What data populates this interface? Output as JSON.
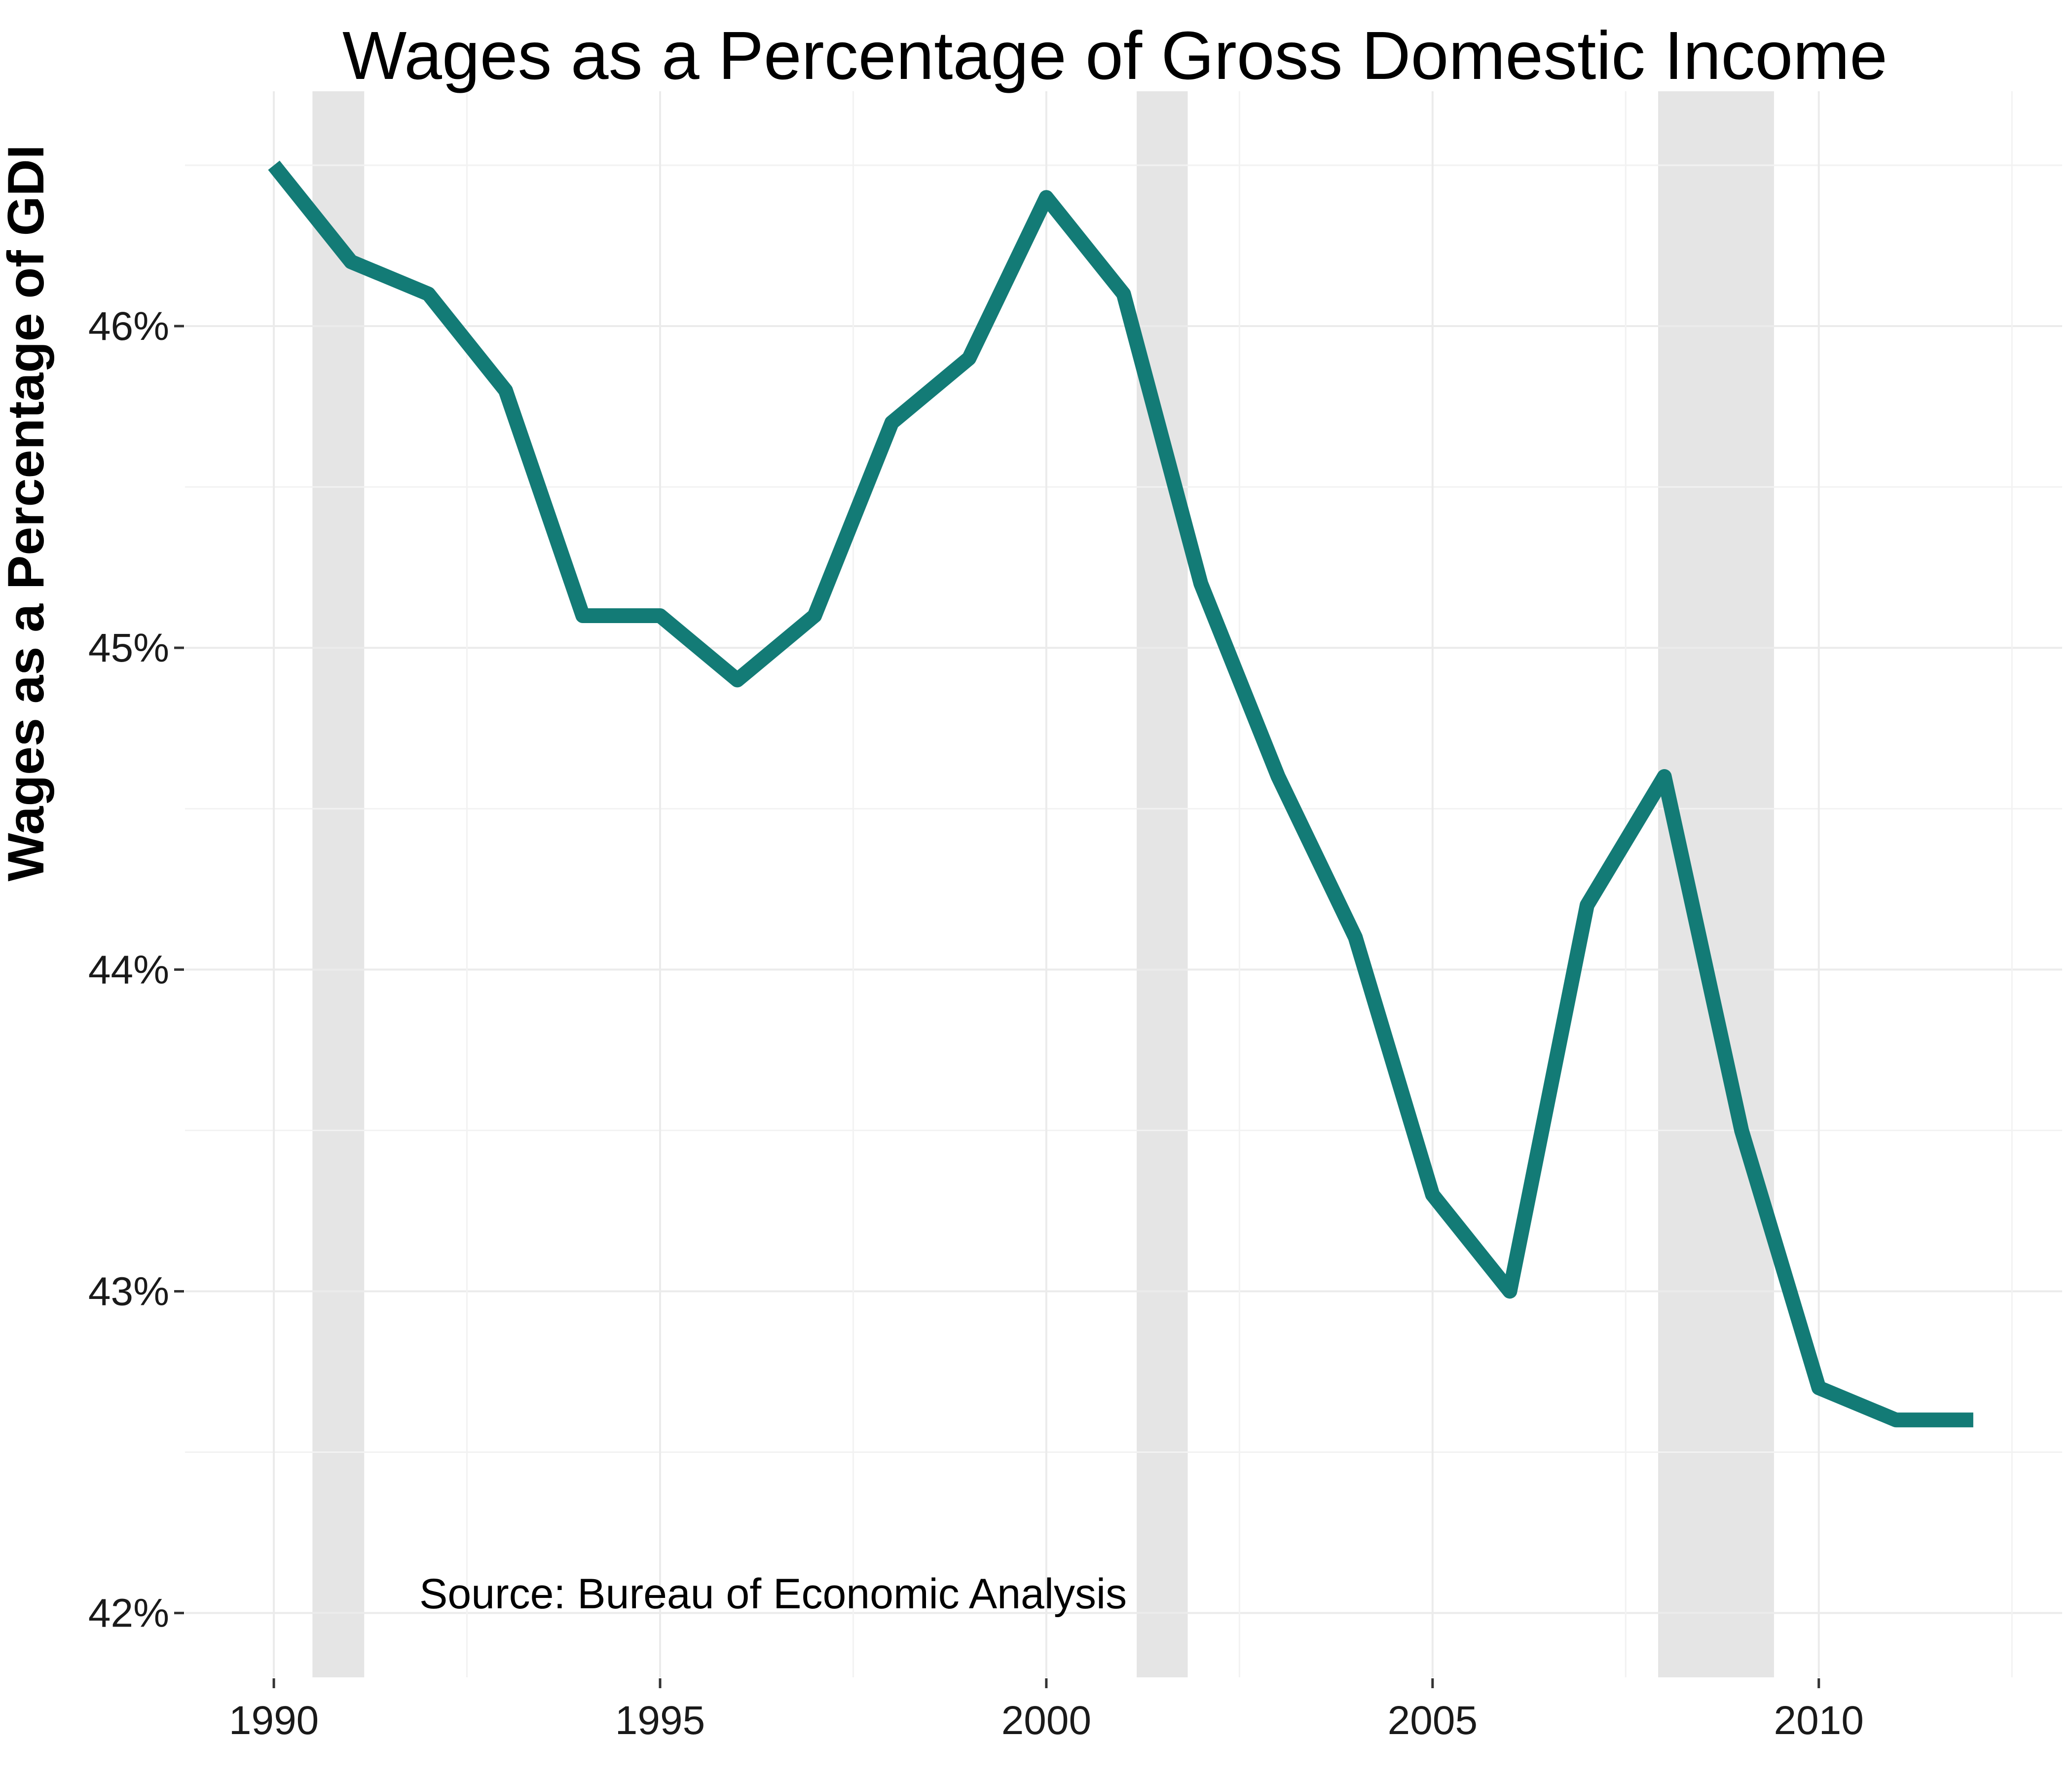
{
  "chart_data": {
    "type": "line",
    "title": "Wages as a Percentage of Gross Domestic Income",
    "xlabel": "",
    "ylabel": "Wages as a Percentage of GDI",
    "annotation": "Source: Bureau of Economic Analysis",
    "x": [
      1990,
      1991,
      1992,
      1993,
      1994,
      1995,
      1996,
      1997,
      1998,
      1999,
      2000,
      2001,
      2002,
      2003,
      2004,
      2005,
      2006,
      2007,
      2008,
      2009,
      2010,
      2011,
      2012
    ],
    "series": [
      {
        "values": [
          46.5,
          46.2,
          46.1,
          45.8,
          45.1,
          45.1,
          44.9,
          45.1,
          45.7,
          45.9,
          46.4,
          46.1,
          45.2,
          44.6,
          44.1,
          43.3,
          43.0,
          44.2,
          44.6,
          43.5,
          42.7,
          42.6,
          42.6
        ],
        "color": "#137B76"
      }
    ],
    "xlim": [
      1988.85,
      2013.15
    ],
    "ylim": [
      41.8,
      46.73
    ],
    "xticks": [
      1990,
      1995,
      2000,
      2005,
      2010
    ],
    "xtick_labels": [
      "1990",
      "1995",
      "2000",
      "2005",
      "2010"
    ],
    "yticks": [
      42,
      43,
      44,
      45,
      46
    ],
    "ytick_labels": [
      "42%",
      "43%",
      "44%",
      "45%",
      "46%"
    ],
    "recessions": [
      [
        1990.5,
        1991.17
      ],
      [
        2001.17,
        2001.83
      ],
      [
        2007.92,
        2009.42
      ]
    ],
    "recession_color": "#e5e5e5",
    "grid": true
  }
}
